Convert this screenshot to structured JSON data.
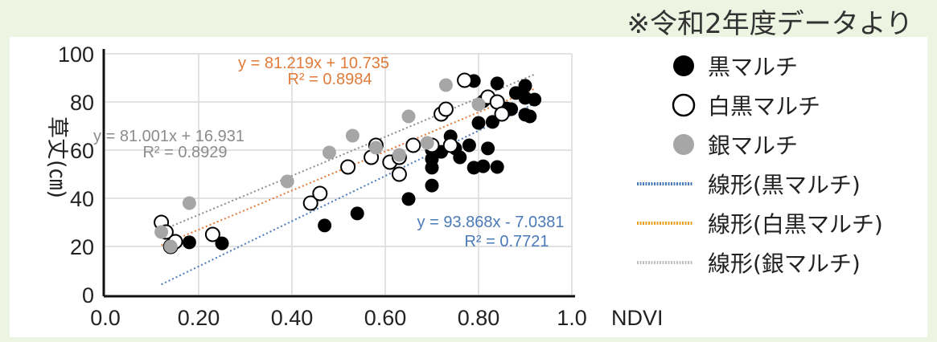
{
  "note": "※令和2年度データより",
  "chart_data": {
    "type": "scatter",
    "xlabel": "NDVI",
    "ylabel": "草丈(㎝)",
    "xlim": [
      0,
      1.0
    ],
    "ylim": [
      0,
      100
    ],
    "xticks": [
      "0.0",
      "0.20",
      "0.40",
      "0.60",
      "0.80",
      "1.0"
    ],
    "yticks": [
      "0",
      "20",
      "40",
      "60",
      "80",
      "100"
    ],
    "grid": true,
    "legend_position": "right",
    "series": [
      {
        "name": "黒マルチ",
        "marker": "filled-black",
        "color": "#000000",
        "points": [
          [
            0.18,
            21.7
          ],
          [
            0.25,
            21.3
          ],
          [
            0.47,
            28.7
          ],
          [
            0.54,
            33.7
          ],
          [
            0.65,
            39.7
          ],
          [
            0.7,
            45.3
          ],
          [
            0.7,
            60
          ],
          [
            0.7,
            52.7
          ],
          [
            0.7,
            56.3
          ],
          [
            0.72,
            59.3
          ],
          [
            0.74,
            65.7
          ],
          [
            0.75,
            60.7
          ],
          [
            0.8,
            71.3
          ],
          [
            0.81,
            80.3
          ],
          [
            0.83,
            71.7
          ],
          [
            0.84,
            87.7
          ],
          [
            0.86,
            77.3
          ],
          [
            0.84,
            53
          ],
          [
            0.79,
            52.7
          ],
          [
            0.81,
            53.3
          ],
          [
            0.88,
            83.7
          ],
          [
            0.9,
            74.7
          ],
          [
            0.91,
            74
          ],
          [
            0.82,
            60.7
          ],
          [
            0.78,
            62
          ],
          [
            0.76,
            57
          ],
          [
            0.79,
            88.7
          ],
          [
            0.9,
            86.7
          ],
          [
            0.92,
            81
          ],
          [
            0.9,
            81.7
          ],
          [
            0.87,
            77
          ]
        ]
      },
      {
        "name": "白黒マルチ",
        "marker": "open-circle",
        "color": "#000000",
        "points": [
          [
            0.12,
            30
          ],
          [
            0.13,
            26
          ],
          [
            0.14,
            20
          ],
          [
            0.15,
            22
          ],
          [
            0.23,
            25
          ],
          [
            0.44,
            38
          ],
          [
            0.46,
            42
          ],
          [
            0.52,
            53
          ],
          [
            0.57,
            57
          ],
          [
            0.58,
            62
          ],
          [
            0.61,
            55
          ],
          [
            0.63,
            57
          ],
          [
            0.63,
            50
          ],
          [
            0.66,
            62
          ],
          [
            0.7,
            62
          ],
          [
            0.72,
            75
          ],
          [
            0.73,
            77
          ],
          [
            0.74,
            62
          ],
          [
            0.77,
            89
          ],
          [
            0.82,
            82
          ],
          [
            0.84,
            80
          ],
          [
            0.85,
            75
          ]
        ]
      },
      {
        "name": "銀マルチ",
        "marker": "filled-gray",
        "color": "#a6a6a6",
        "points": [
          [
            0.12,
            26
          ],
          [
            0.14,
            20
          ],
          [
            0.18,
            38
          ],
          [
            0.39,
            47
          ],
          [
            0.48,
            59
          ],
          [
            0.53,
            66
          ],
          [
            0.58,
            61
          ],
          [
            0.63,
            58
          ],
          [
            0.65,
            74
          ],
          [
            0.69,
            63
          ],
          [
            0.73,
            87
          ],
          [
            0.8,
            79
          ]
        ]
      }
    ],
    "trendlines": [
      {
        "name": "線形(黒マルチ)",
        "slope": 93.868,
        "intercept": -7.0381,
        "equation": "y = 93.868x - 7.0381",
        "r2": "R² = 0.7721",
        "color": "#4a7ab8",
        "xrange": [
          0.12,
          0.92
        ]
      },
      {
        "name": "線形(白黒マルチ)",
        "slope": 81.219,
        "intercept": 10.735,
        "equation": "y = 81.219x + 10.735",
        "r2": "R² = 0.8984",
        "color": "#e07b39",
        "legend_color": "#e6a020",
        "xrange": [
          0.12,
          0.92
        ]
      },
      {
        "name": "線形(銀マルチ)",
        "slope": 81.001,
        "intercept": 16.931,
        "equation": "y = 81.001x + 16.931",
        "r2": "R² = 0.8929",
        "color": "#8c8c8c",
        "legend_color": "#c0c0c0",
        "xrange": [
          0.12,
          0.92
        ]
      }
    ]
  }
}
